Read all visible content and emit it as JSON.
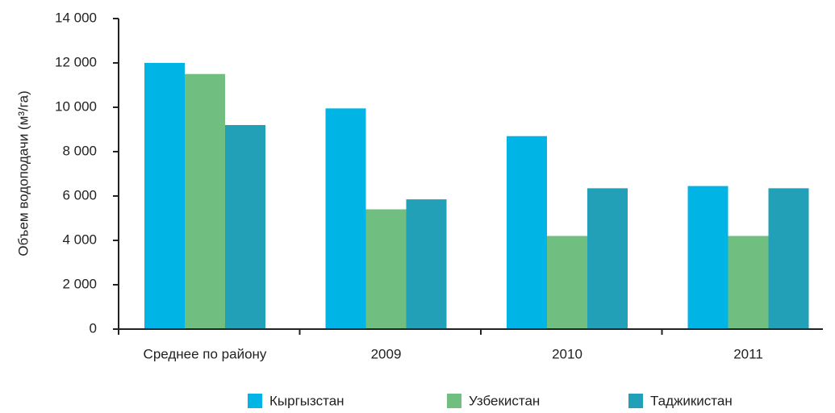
{
  "chart_data": {
    "type": "bar",
    "y_label": "Объем водоподачи (м³/га)",
    "categories": [
      "Среднее по району",
      "2009",
      "2010",
      "2011"
    ],
    "series": [
      {
        "name": "Кыргызстан",
        "color": "#00b5e6",
        "values": [
          12000,
          9950,
          8700,
          6450
        ]
      },
      {
        "name": "Узбекистан",
        "color": "#70bf80",
        "values": [
          11500,
          5400,
          4200,
          4200
        ]
      },
      {
        "name": "Таджикистан",
        "color": "#22a0b8",
        "values": [
          9200,
          5850,
          6350,
          6350
        ]
      }
    ],
    "ylim": [
      0,
      14000
    ],
    "yticks": [
      0,
      {
        "value": 2000,
        "label": "2 000"
      },
      {
        "value": 4000,
        "label": "4 000"
      },
      {
        "value": 6000,
        "label": "6 000"
      },
      {
        "value": 8000,
        "label": "8 000"
      },
      {
        "value": 10000,
        "label": "10 000"
      },
      {
        "value": 12000,
        "label": "12 000"
      },
      {
        "value": 14000,
        "label": "14 000"
      }
    ],
    "legend": "bottom"
  }
}
